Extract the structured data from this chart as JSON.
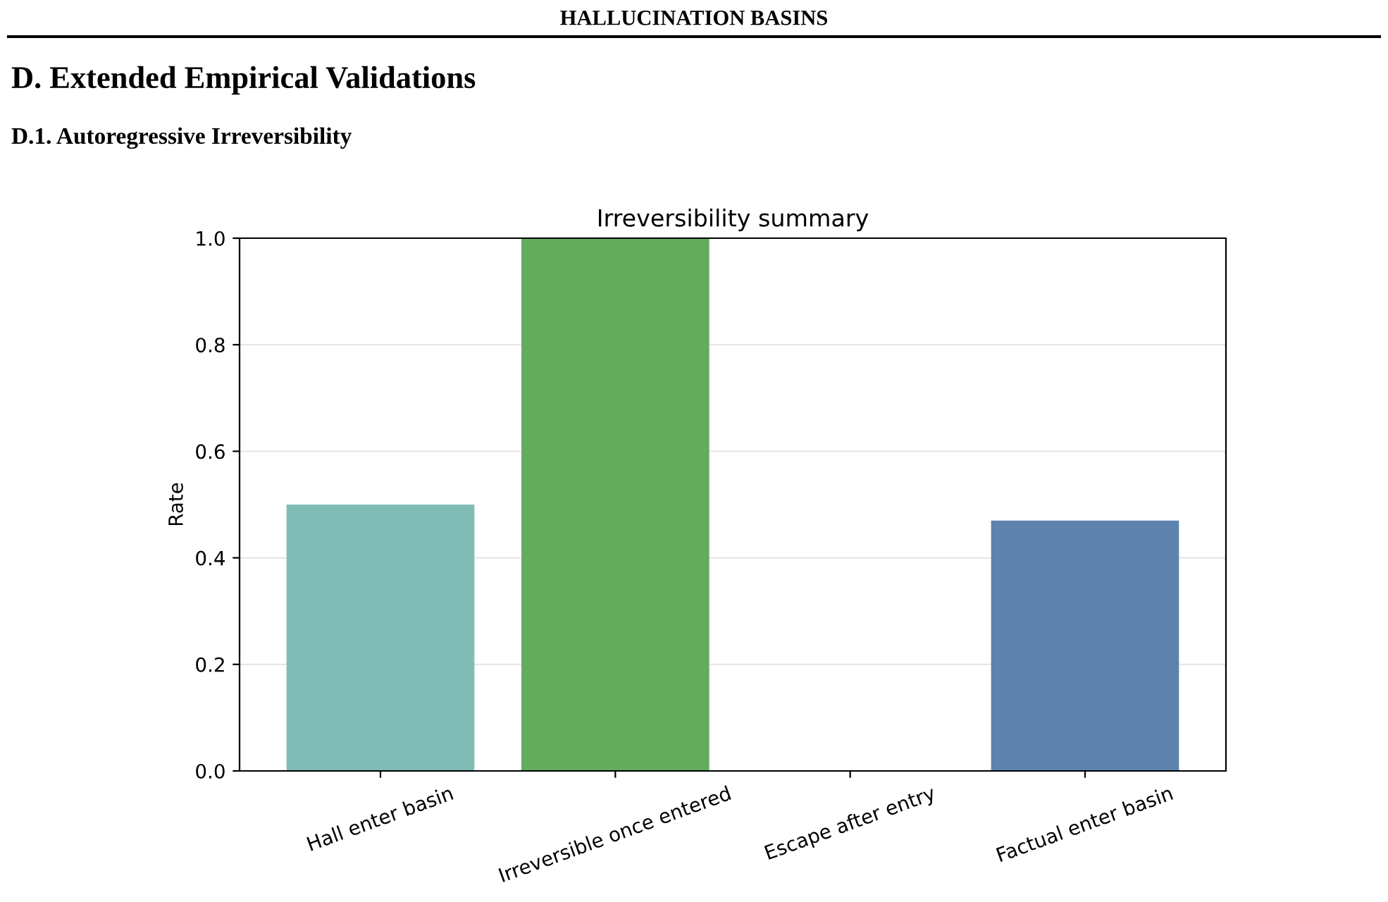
{
  "chart_data": {
    "type": "bar",
    "title": "Irreversibility summary",
    "ylabel": "Rate",
    "annotations": [
      "HALLUCINATION BASINS",
      "D. Extended Empirical Validations",
      "D.1. Autoregressive Irreversibility"
    ],
    "categories": [
      "Hall enter basin",
      "Irreversible once entered",
      "Escape after entry",
      "Factual enter basin"
    ],
    "values": [
      0.5,
      1.0,
      0.0,
      0.47
    ],
    "colors": [
      "#80bdb7",
      "#64ab5e",
      "#e3a857",
      "#5d83ae"
    ],
    "ylim": [
      0.0,
      1.0
    ],
    "yticks": [
      {
        "value": 0,
        "label": "0.0"
      },
      0.2,
      0.4,
      0.6,
      0.8,
      {
        "value": 1,
        "label": "1.0"
      }
    ],
    "grid": "y"
  }
}
